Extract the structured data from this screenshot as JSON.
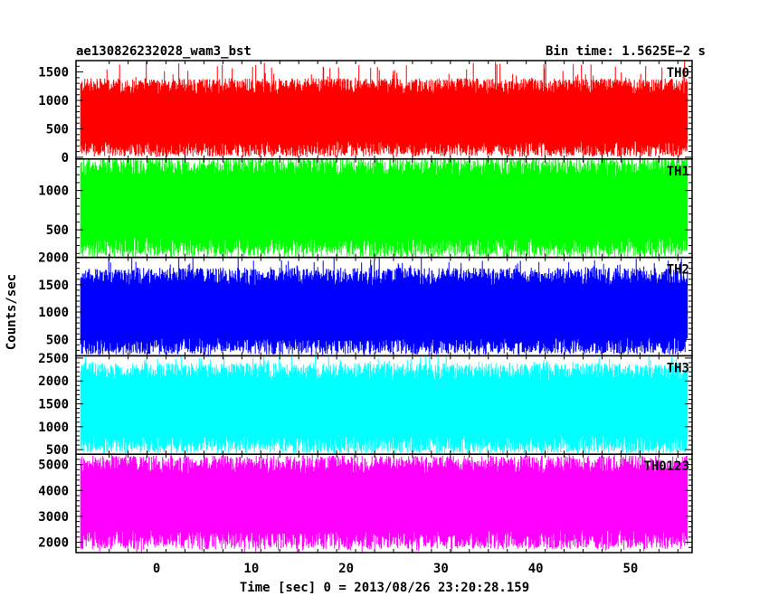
{
  "header": {
    "title": "ae130826232028_wam3_bst",
    "bin_time": "Bin time: 1.5625E−2 s"
  },
  "chart_data": {
    "type": "line",
    "title": "ae130826232028_wam3_bst",
    "xlabel": "Time [sec] 0 = 2013/08/26 23:20:28.159",
    "ylabel": "Counts/sec",
    "xlim": [
      -8.5,
      56.5
    ],
    "data_xrange": [
      -8.0,
      56.0
    ],
    "x_ticks": [
      0,
      10,
      20,
      30,
      40,
      50
    ],
    "grid": false,
    "panels": [
      {
        "name": "TH0",
        "color": "#ff0000",
        "ylim": [
          -30,
          1700
        ],
        "y_ticks": [
          0,
          500,
          1000,
          1500
        ],
        "baseline": 700,
        "envelope_top": 1250,
        "envelope_bottom": 150,
        "peak_max": 1700,
        "trough_min": 0
      },
      {
        "name": "TH1",
        "color": "#00ff00",
        "ylim": [
          150,
          1400
        ],
        "y_ticks": [
          500,
          1000
        ],
        "baseline": 790,
        "envelope_top": 1300,
        "envelope_bottom": 280,
        "peak_max": 1400,
        "trough_min": 150
      },
      {
        "name": "TH2",
        "color": "#0000ff",
        "ylim": [
          200,
          2000
        ],
        "y_ticks": [
          500,
          1000,
          1500,
          2000
        ],
        "baseline": 1000,
        "envelope_top": 1650,
        "envelope_bottom": 380,
        "peak_max": 2000,
        "trough_min": 200
      },
      {
        "name": "TH3",
        "color": "#00ffff",
        "ylim": [
          400,
          2550
        ],
        "y_ticks": [
          500,
          1000,
          1500,
          2000,
          2500
        ],
        "baseline": 1420,
        "envelope_top": 2200,
        "envelope_bottom": 620,
        "peak_max": 2550,
        "trough_min": 400
      },
      {
        "name": "TH0123",
        "color": "#ff00ff",
        "ylim": [
          1600,
          5400
        ],
        "y_ticks": [
          2000,
          3000,
          4000,
          5000
        ],
        "baseline": 3600,
        "envelope_top": 5000,
        "envelope_bottom": 2100,
        "peak_max": 5400,
        "trough_min": 1600
      }
    ]
  }
}
